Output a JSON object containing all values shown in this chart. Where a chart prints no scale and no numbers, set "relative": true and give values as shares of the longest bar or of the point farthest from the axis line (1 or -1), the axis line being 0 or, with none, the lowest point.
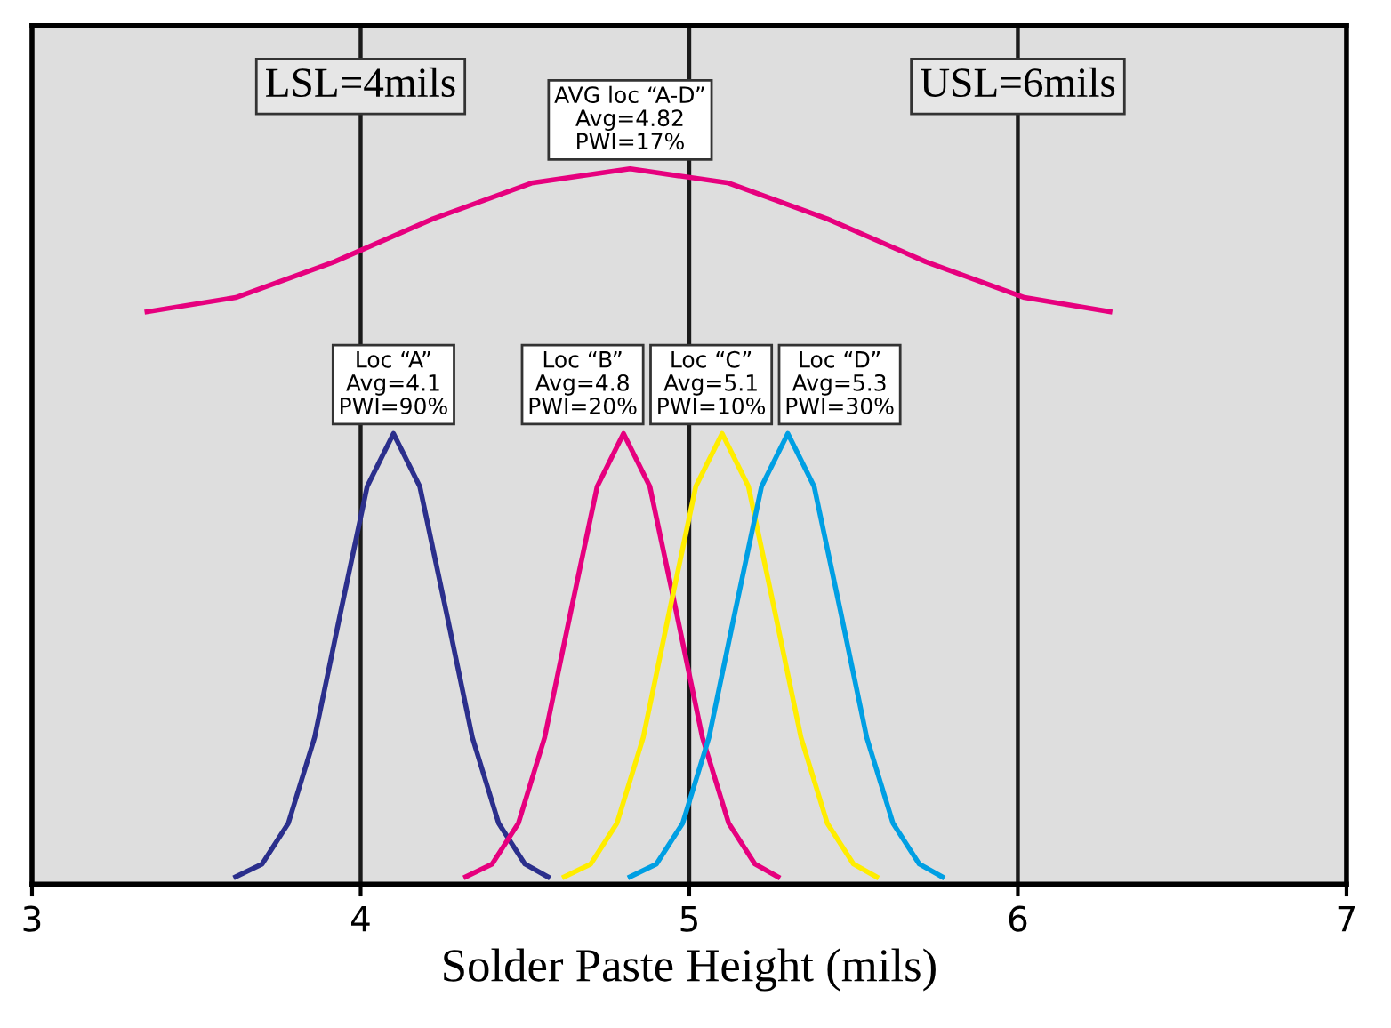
{
  "chart_data": {
    "type": "line",
    "relative": true,
    "xlabel": "Solder Paste Height (mils)",
    "xlim": [
      3,
      7
    ],
    "xticks": [
      3,
      4,
      5,
      6,
      7
    ],
    "legend": false,
    "marker": "none",
    "line_style": "solid",
    "series": [
      {
        "color": "#e6007e",
        "x": [
          3.35,
          3.62,
          3.92,
          4.22,
          4.52,
          4.82,
          5.12,
          5.42,
          5.72,
          6.02,
          6.28
        ],
        "values": [
          0.8,
          0.82,
          0.87,
          0.93,
          0.98,
          1.0,
          0.98,
          0.93,
          0.87,
          0.82,
          0.8
        ]
      },
      {
        "color": "#2b2f8c",
        "x": [
          3.62,
          3.7,
          3.78,
          3.86,
          3.94,
          4.02,
          4.1,
          4.18,
          4.26,
          4.34,
          4.42,
          4.5,
          4.57
        ],
        "values": [
          0.01,
          0.028,
          0.085,
          0.205,
          0.382,
          0.556,
          0.63,
          0.556,
          0.382,
          0.205,
          0.085,
          0.028,
          0.01
        ]
      },
      {
        "color": "#e6007e",
        "x": [
          4.32,
          4.4,
          4.48,
          4.56,
          4.64,
          4.72,
          4.8,
          4.88,
          4.96,
          5.04,
          5.12,
          5.2,
          5.27
        ],
        "values": [
          0.01,
          0.028,
          0.085,
          0.205,
          0.382,
          0.556,
          0.63,
          0.556,
          0.382,
          0.205,
          0.085,
          0.028,
          0.01
        ]
      },
      {
        "color": "#ffed00",
        "x": [
          4.62,
          4.7,
          4.78,
          4.86,
          4.94,
          5.02,
          5.1,
          5.18,
          5.26,
          5.34,
          5.42,
          5.5,
          5.57
        ],
        "values": [
          0.01,
          0.028,
          0.085,
          0.205,
          0.382,
          0.556,
          0.63,
          0.556,
          0.382,
          0.205,
          0.085,
          0.028,
          0.01
        ]
      },
      {
        "color": "#009fe3",
        "x": [
          4.82,
          4.9,
          4.98,
          5.06,
          5.14,
          5.22,
          5.3,
          5.38,
          5.46,
          5.54,
          5.62,
          5.7,
          5.77
        ],
        "values": [
          0.01,
          0.028,
          0.085,
          0.205,
          0.382,
          0.556,
          0.63,
          0.556,
          0.382,
          0.205,
          0.085,
          0.028,
          0.01
        ]
      }
    ],
    "ref_lines": [
      {
        "axis": "x",
        "value": 4,
        "label": "LSL=4mils",
        "color": "#1a1a1a"
      },
      {
        "axis": "x",
        "value": 5,
        "color": "#1a1a1a"
      },
      {
        "axis": "x",
        "value": 6,
        "label": "USL=6mils",
        "color": "#1a1a1a"
      }
    ],
    "annotations": [
      {
        "text": "AVG loc “A-D”\nAvg=4.82\nPWI=17%",
        "x": 4.82,
        "y": 1.0
      },
      {
        "text": "Loc “A”\nAvg=4.1\nPWI=90%",
        "x": 4.1,
        "y": 0.63
      },
      {
        "text": "Loc “B”\nAvg=4.8\nPWI=20%",
        "x": 4.8,
        "y": 0.63
      },
      {
        "text": "Loc “C”\nAvg=5.1\nPWI=10%",
        "x": 5.1,
        "y": 0.63
      },
      {
        "text": "Loc “D”\nAvg=5.3\nPWI=30%",
        "x": 5.3,
        "y": 0.63
      }
    ]
  }
}
